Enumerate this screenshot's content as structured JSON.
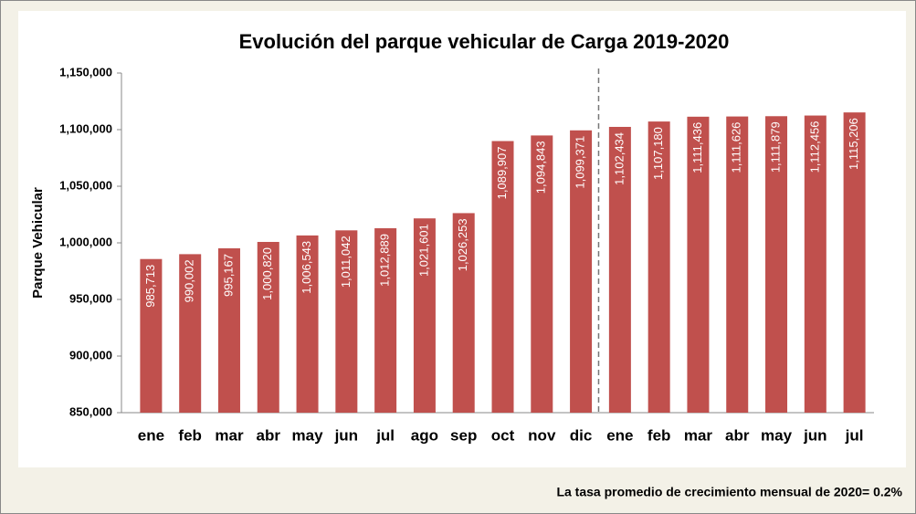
{
  "chart_data": {
    "type": "bar",
    "title": "Evolución del parque vehicular de Carga 2019-2020",
    "ylabel": "Parque Vehicular",
    "annotation": "La tasa promedio de crecimiento mensual de 2020= 0.2%",
    "categories": [
      "ene",
      "feb",
      "mar",
      "abr",
      "may",
      "jun",
      "jul",
      "ago",
      "sep",
      "oct",
      "nov",
      "dic",
      "ene",
      "feb",
      "mar",
      "abr",
      "may",
      "jun",
      "jul"
    ],
    "values": [
      985713,
      990002,
      995167,
      1000820,
      1006543,
      1011042,
      1012889,
      1021601,
      1026253,
      1089907,
      1094843,
      1099371,
      1102434,
      1107180,
      1111436,
      1111626,
      1111879,
      1112456,
      1115206
    ],
    "value_labels": [
      "985,713",
      "990,002",
      "995,167",
      "1,000,820",
      "1,006,543",
      "1,011,042",
      "1,012,889",
      "1,021,601",
      "1,026,253",
      "1,089,907",
      "1,094,843",
      "1,099,371",
      "1,102,434",
      "1,107,180",
      "1,111,436",
      "1,111,626",
      "1,111,879",
      "1,112,456",
      "1,115,206"
    ],
    "color": "#c0504d",
    "ylim": [
      850000,
      1150000
    ],
    "yticks": [
      {
        "value": 850000,
        "label": "850,000"
      },
      {
        "value": 900000,
        "label": "900,000"
      },
      {
        "value": 950000,
        "label": "950,000"
      },
      {
        "value": 1000000,
        "label": "1,000,000"
      },
      {
        "value": 1050000,
        "label": "1,050,000"
      },
      {
        "value": 1100000,
        "label": "1,100,000"
      },
      {
        "value": 1150000,
        "label": "1,150,000"
      }
    ],
    "grid": false
  }
}
